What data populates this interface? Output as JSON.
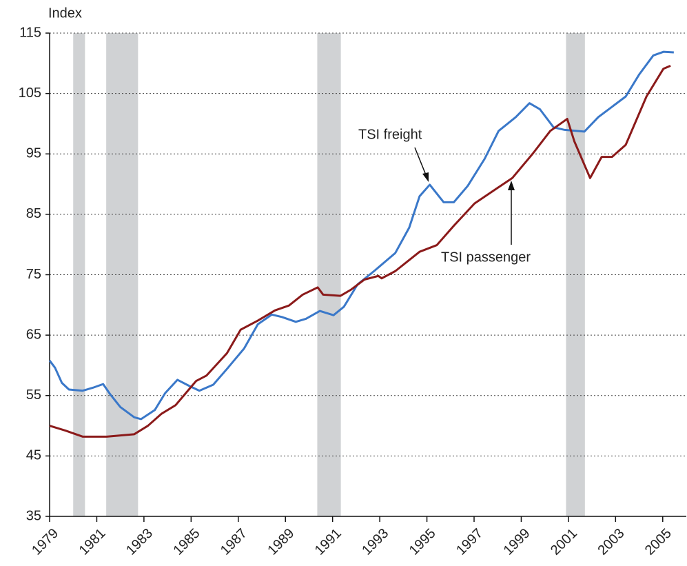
{
  "chart_data": {
    "type": "line",
    "y_label": "Index",
    "xlim": [
      1979,
      2006
    ],
    "xticks": [
      1979,
      1981,
      1983,
      1985,
      1987,
      1989,
      1991,
      1993,
      1995,
      1997,
      1999,
      2001,
      2003,
      2005
    ],
    "ylim": [
      35,
      115
    ],
    "yticks": [
      35,
      45,
      55,
      65,
      75,
      85,
      95,
      105,
      115
    ],
    "grid": true,
    "shaded_periods": [
      [
        1980.0,
        1980.5
      ],
      [
        1981.4,
        1982.75
      ],
      [
        1990.35,
        1991.35
      ],
      [
        2000.9,
        2001.7
      ]
    ],
    "shade_color": "#d0d2d4",
    "series": [
      {
        "name": "TSI freight",
        "color": "#3a78c9",
        "x": [
          1979.0,
          1979.23,
          1979.52,
          1979.82,
          1980.4,
          1980.84,
          1981.27,
          1981.57,
          1982.0,
          1982.59,
          1982.88,
          1983.46,
          1983.9,
          1984.42,
          1984.92,
          1985.35,
          1985.94,
          1986.52,
          1987.25,
          1987.83,
          1988.42,
          1988.85,
          1989.44,
          1989.87,
          1990.46,
          1991.04,
          1991.48,
          1992.06,
          1992.79,
          1993.66,
          1994.25,
          1994.69,
          1995.12,
          1995.71,
          1996.14,
          1996.73,
          1997.45,
          1998.04,
          1998.77,
          1999.35,
          1999.79,
          2000.37,
          2000.81,
          2001.68,
          2002.27,
          2002.85,
          2003.43,
          2004.01,
          2004.6,
          2005.03,
          2005.47
        ],
        "values": [
          60.8,
          59.6,
          57.1,
          56,
          55.8,
          56.3,
          56.9,
          55.2,
          53.1,
          51.4,
          51.1,
          52.6,
          55.4,
          57.6,
          56.6,
          55.8,
          56.8,
          59.4,
          62.8,
          66.8,
          68.4,
          68,
          67.2,
          67.7,
          69,
          68.3,
          69.7,
          73.4,
          75.7,
          78.6,
          82.8,
          88,
          89.9,
          87,
          87,
          89.7,
          94.2,
          98.8,
          101.1,
          103.4,
          102.4,
          99.4,
          99,
          98.7,
          101.1,
          102.8,
          104.5,
          108.2,
          111.3,
          111.9,
          111.8
        ]
      },
      {
        "name": "TSI passenger",
        "color": "#8b1a1a",
        "x": [
          1979.0,
          1979.67,
          1980.4,
          1981.42,
          1982.59,
          1983.17,
          1983.75,
          1984.34,
          1985.21,
          1985.65,
          1986.52,
          1987.1,
          1987.83,
          1988.56,
          1989.15,
          1989.73,
          1990.37,
          1990.6,
          1991.33,
          1991.77,
          1992.35,
          1992.94,
          1993.08,
          1993.66,
          1994.69,
          1995.42,
          1996.14,
          1997.02,
          1997.89,
          1998.62,
          1999.5,
          2000.23,
          2000.95,
          2001.25,
          2001.92,
          2002.41,
          2002.85,
          2003.43,
          2004.31,
          2005.03,
          2005.33
        ],
        "values": [
          50,
          49.2,
          48.2,
          48.2,
          48.6,
          50,
          52,
          53.4,
          57.4,
          58.3,
          62,
          65.9,
          67.4,
          69.1,
          69.9,
          71.7,
          72.9,
          71.7,
          71.5,
          72.5,
          74.2,
          74.8,
          74.4,
          75.6,
          78.8,
          79.9,
          83.1,
          86.8,
          89.1,
          91,
          95.1,
          98.8,
          100.8,
          97.1,
          91,
          94.5,
          94.5,
          96.5,
          104.5,
          109.1,
          109.6
        ]
      }
    ]
  }
}
